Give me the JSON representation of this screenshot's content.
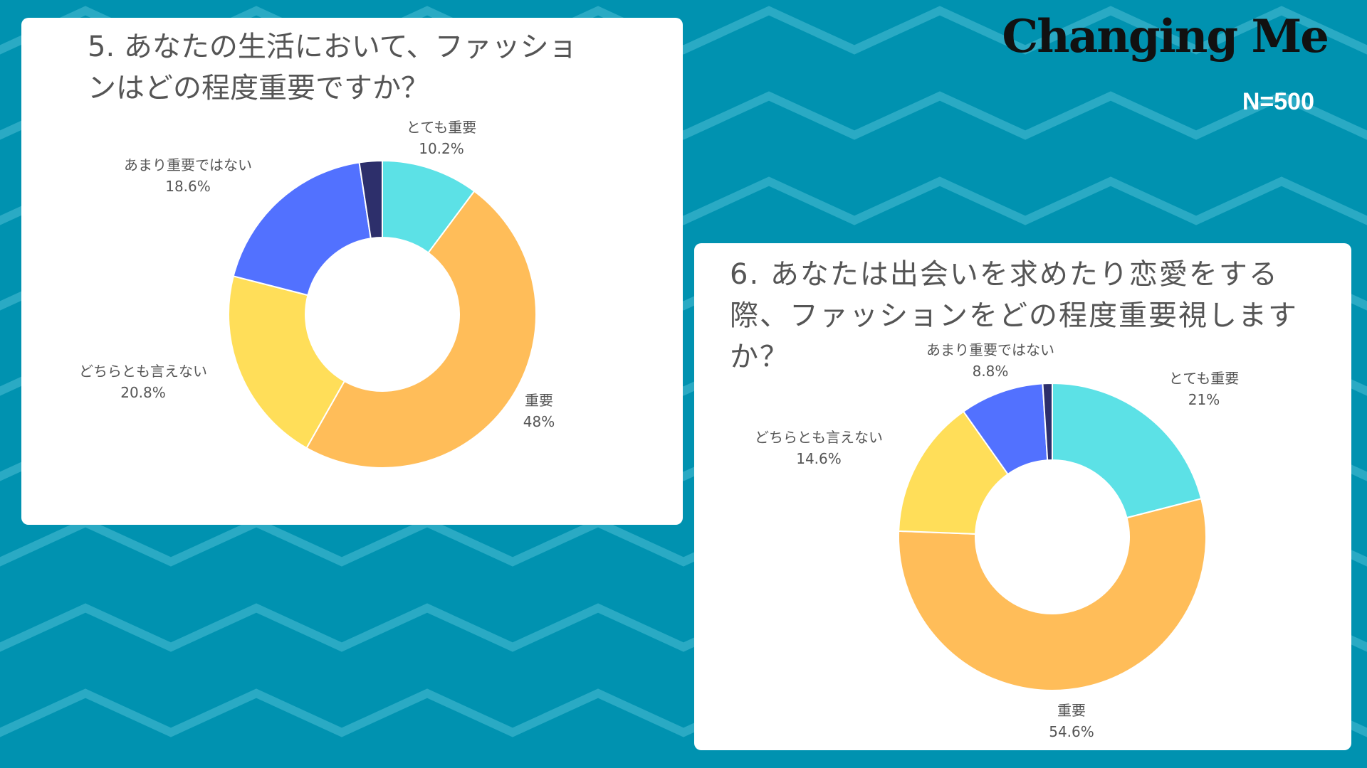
{
  "brand": "Changing Me",
  "sample_size": "N=500",
  "colors": {
    "background": "#0092b0",
    "chevron": "#2aaac4",
    "card": "#ffffff",
    "text": "#555555",
    "brand_text": "#111111"
  },
  "chart_data": [
    {
      "type": "pie",
      "donut": true,
      "title": "5. あなたの生活において、ファッションはどの程度重要ですか？",
      "slices": [
        {
          "label": "とても重要",
          "value": 10.2,
          "display": "10.2%",
          "color": "#5ce1e6"
        },
        {
          "label": "重要",
          "value": 48,
          "display": "48%",
          "color": "#ffbd59"
        },
        {
          "label": "どちらとも言えない",
          "value": 20.8,
          "display": "20.8%",
          "color": "#ffde59"
        },
        {
          "label": "あまり重要ではない",
          "value": 18.6,
          "display": "18.6%",
          "color": "#5271ff"
        },
        {
          "label": "",
          "value": 2.4,
          "display": "",
          "color": "#2d2f6b"
        }
      ]
    },
    {
      "type": "pie",
      "donut": true,
      "title": "6. あなたは出会いを求めたり恋愛をする際、ファッションをどの程度重要視しますか？",
      "slices": [
        {
          "label": "とても重要",
          "value": 21,
          "display": "21%",
          "color": "#5ce1e6"
        },
        {
          "label": "重要",
          "value": 54.6,
          "display": "54.6%",
          "color": "#ffbd59"
        },
        {
          "label": "どちらとも言えない",
          "value": 14.6,
          "display": "14.6%",
          "color": "#ffde59"
        },
        {
          "label": "あまり重要ではない",
          "value": 8.8,
          "display": "8.8%",
          "color": "#5271ff"
        },
        {
          "label": "",
          "value": 1.0,
          "display": "",
          "color": "#2d2f6b"
        }
      ]
    }
  ]
}
